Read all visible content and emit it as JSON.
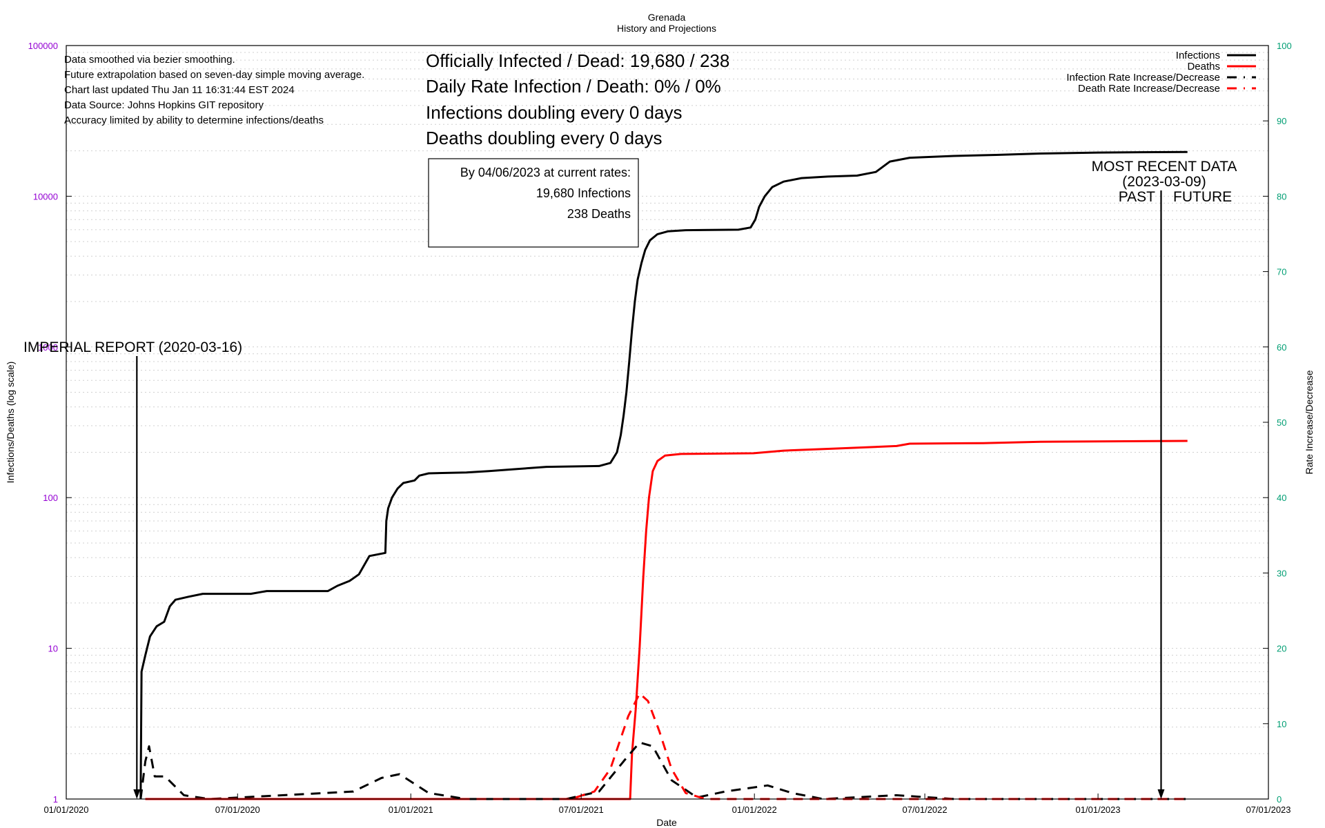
{
  "chart_data": {
    "type": "line",
    "title": "Grenada",
    "subtitle": "History and Projections",
    "xlabel": "Date",
    "ylabel": "Infections/Deaths (log scale)",
    "y2label": "Rate Increase/Decrease",
    "xlim": [
      "2020-01-01",
      "2023-07-01"
    ],
    "ylim": [
      1,
      100000
    ],
    "y2lim": [
      0,
      100
    ],
    "yscale": "log",
    "grid": true,
    "legend_position": "top-right",
    "x_ticks": [
      "01/01/2020",
      "07/01/2020",
      "01/01/2021",
      "07/01/2021",
      "01/01/2022",
      "07/01/2022",
      "01/01/2023",
      "07/01/2023"
    ],
    "y_ticks": [
      "1",
      "10",
      "100",
      "1000",
      "10000",
      "100000"
    ],
    "y2_ticks": [
      "0",
      "10",
      "20",
      "30",
      "40",
      "50",
      "60",
      "70",
      "80",
      "90",
      "100"
    ],
    "colors": {
      "infections": "#000000",
      "deaths": "#ff0000",
      "left_axis_ticks": "#9400d3",
      "right_axis_ticks": "#009e73"
    },
    "notes": [
      "Data smoothed via bezier smoothing.",
      "Future extrapolation based on seven-day simple moving average.",
      "Chart last updated Thu Jan 11 16:31:44 EST 2024",
      "Data Source: Johns Hopkins GIT repository",
      "Accuracy limited by ability to determine infections/deaths"
    ],
    "headline": [
      "Officially Infected / Dead:  19,680 / 238",
      "Daily Rate Infection / Death:  0% / 0%",
      "Infections doubling every 0 days",
      "Deaths doubling every 0 days"
    ],
    "projection_box": [
      "By 04/06/2023 at current rates:",
      "19,680 Infections",
      "238 Deaths"
    ],
    "annotations": {
      "imperial": {
        "label": "IMPERIAL REPORT (2020-03-16)",
        "date": "2020-03-16"
      },
      "recent": {
        "lines": [
          "MOST RECENT DATA",
          "(2023-03-09)"
        ],
        "past": "PAST",
        "future": "FUTURE",
        "date": "2023-03-09"
      }
    },
    "series": [
      {
        "name": "Infections",
        "axis": "left",
        "style": "solid",
        "points": [
          [
            "2020-03-20",
            1
          ],
          [
            "2020-03-21",
            7
          ],
          [
            "2020-03-25",
            9
          ],
          [
            "2020-03-30",
            12
          ],
          [
            "2020-04-06",
            14
          ],
          [
            "2020-04-14",
            15
          ],
          [
            "2020-04-20",
            19
          ],
          [
            "2020-04-26",
            21
          ],
          [
            "2020-05-10",
            22
          ],
          [
            "2020-05-25",
            23
          ],
          [
            "2020-07-15",
            23
          ],
          [
            "2020-08-01",
            24
          ],
          [
            "2020-10-05",
            24
          ],
          [
            "2020-10-15",
            26
          ],
          [
            "2020-10-28",
            28
          ],
          [
            "2020-11-07",
            31
          ],
          [
            "2020-11-18",
            41
          ],
          [
            "2020-12-05",
            43
          ],
          [
            "2020-12-06",
            70
          ],
          [
            "2020-12-08",
            85
          ],
          [
            "2020-12-12",
            100
          ],
          [
            "2020-12-18",
            115
          ],
          [
            "2020-12-24",
            125
          ],
          [
            "2021-01-05",
            130
          ],
          [
            "2021-01-10",
            140
          ],
          [
            "2021-01-20",
            145
          ],
          [
            "2021-03-01",
            147
          ],
          [
            "2021-03-25",
            150
          ],
          [
            "2021-04-25",
            155
          ],
          [
            "2021-05-25",
            160
          ],
          [
            "2021-07-20",
            162
          ],
          [
            "2021-08-01",
            170
          ],
          [
            "2021-08-08",
            200
          ],
          [
            "2021-08-12",
            260
          ],
          [
            "2021-08-15",
            350
          ],
          [
            "2021-08-18",
            500
          ],
          [
            "2021-08-21",
            800
          ],
          [
            "2021-08-24",
            1300
          ],
          [
            "2021-08-27",
            2000
          ],
          [
            "2021-08-30",
            2800
          ],
          [
            "2021-09-03",
            3600
          ],
          [
            "2021-09-07",
            4400
          ],
          [
            "2021-09-12",
            5100
          ],
          [
            "2021-09-20",
            5600
          ],
          [
            "2021-10-01",
            5850
          ],
          [
            "2021-10-20",
            5950
          ],
          [
            "2021-12-15",
            6000
          ],
          [
            "2021-12-28",
            6200
          ],
          [
            "2022-01-02",
            7000
          ],
          [
            "2022-01-06",
            8500
          ],
          [
            "2022-01-12",
            10000
          ],
          [
            "2022-01-20",
            11500
          ],
          [
            "2022-02-01",
            12500
          ],
          [
            "2022-02-20",
            13200
          ],
          [
            "2022-03-20",
            13500
          ],
          [
            "2022-04-20",
            13700
          ],
          [
            "2022-05-10",
            14500
          ],
          [
            "2022-05-25",
            17000
          ],
          [
            "2022-06-15",
            18000
          ],
          [
            "2022-08-01",
            18500
          ],
          [
            "2022-09-15",
            18800
          ],
          [
            "2022-11-01",
            19200
          ],
          [
            "2023-01-01",
            19500
          ],
          [
            "2023-04-06",
            19680
          ]
        ]
      },
      {
        "name": "Deaths",
        "axis": "left",
        "style": "solid",
        "points": [
          [
            "2020-03-25",
            1
          ],
          [
            "2021-08-22",
            1
          ],
          [
            "2021-08-24",
            2
          ],
          [
            "2021-08-28",
            4
          ],
          [
            "2021-09-01",
            10
          ],
          [
            "2021-09-05",
            30
          ],
          [
            "2021-09-08",
            60
          ],
          [
            "2021-09-11",
            100
          ],
          [
            "2021-09-15",
            150
          ],
          [
            "2021-09-20",
            175
          ],
          [
            "2021-09-28",
            190
          ],
          [
            "2021-10-15",
            195
          ],
          [
            "2021-12-31",
            197
          ],
          [
            "2022-02-01",
            205
          ],
          [
            "2022-04-01",
            212
          ],
          [
            "2022-06-01",
            220
          ],
          [
            "2022-06-15",
            228
          ],
          [
            "2022-09-01",
            230
          ],
          [
            "2022-11-01",
            235
          ],
          [
            "2023-04-06",
            238
          ]
        ]
      },
      {
        "name": "Infection Rate Increase/Decrease",
        "axis": "right",
        "style": "dashed",
        "points": [
          [
            "2020-03-20",
            0
          ],
          [
            "2020-03-25",
            5
          ],
          [
            "2020-03-29",
            7
          ],
          [
            "2020-04-04",
            3
          ],
          [
            "2020-04-15",
            3
          ],
          [
            "2020-05-05",
            0.5
          ],
          [
            "2020-06-01",
            0
          ],
          [
            "2020-11-01",
            1
          ],
          [
            "2020-12-01",
            2.8
          ],
          [
            "2020-12-20",
            3.3
          ],
          [
            "2021-01-20",
            0.8
          ],
          [
            "2021-03-01",
            0
          ],
          [
            "2021-06-15",
            0
          ],
          [
            "2021-07-20",
            1
          ],
          [
            "2021-08-15",
            5
          ],
          [
            "2021-09-01",
            7.5
          ],
          [
            "2021-09-15",
            7
          ],
          [
            "2021-10-05",
            2.5
          ],
          [
            "2021-11-01",
            0.2
          ],
          [
            "2021-12-01",
            1
          ],
          [
            "2022-01-15",
            1.8
          ],
          [
            "2022-02-10",
            0.8
          ],
          [
            "2022-03-15",
            0
          ],
          [
            "2022-06-01",
            0.5
          ],
          [
            "2022-08-01",
            0
          ],
          [
            "2023-04-06",
            0
          ]
        ]
      },
      {
        "name": "Death Rate Increase/Decrease",
        "axis": "right",
        "style": "dashed",
        "points": [
          [
            "2020-03-25",
            0
          ],
          [
            "2021-06-20",
            0
          ],
          [
            "2021-07-15",
            1
          ],
          [
            "2021-08-01",
            4
          ],
          [
            "2021-08-20",
            11
          ],
          [
            "2021-09-01",
            14
          ],
          [
            "2021-09-10",
            13
          ],
          [
            "2021-09-22",
            9
          ],
          [
            "2021-10-05",
            4
          ],
          [
            "2021-10-20",
            0.8
          ],
          [
            "2021-11-10",
            0
          ],
          [
            "2023-04-06",
            0
          ]
        ]
      }
    ]
  }
}
